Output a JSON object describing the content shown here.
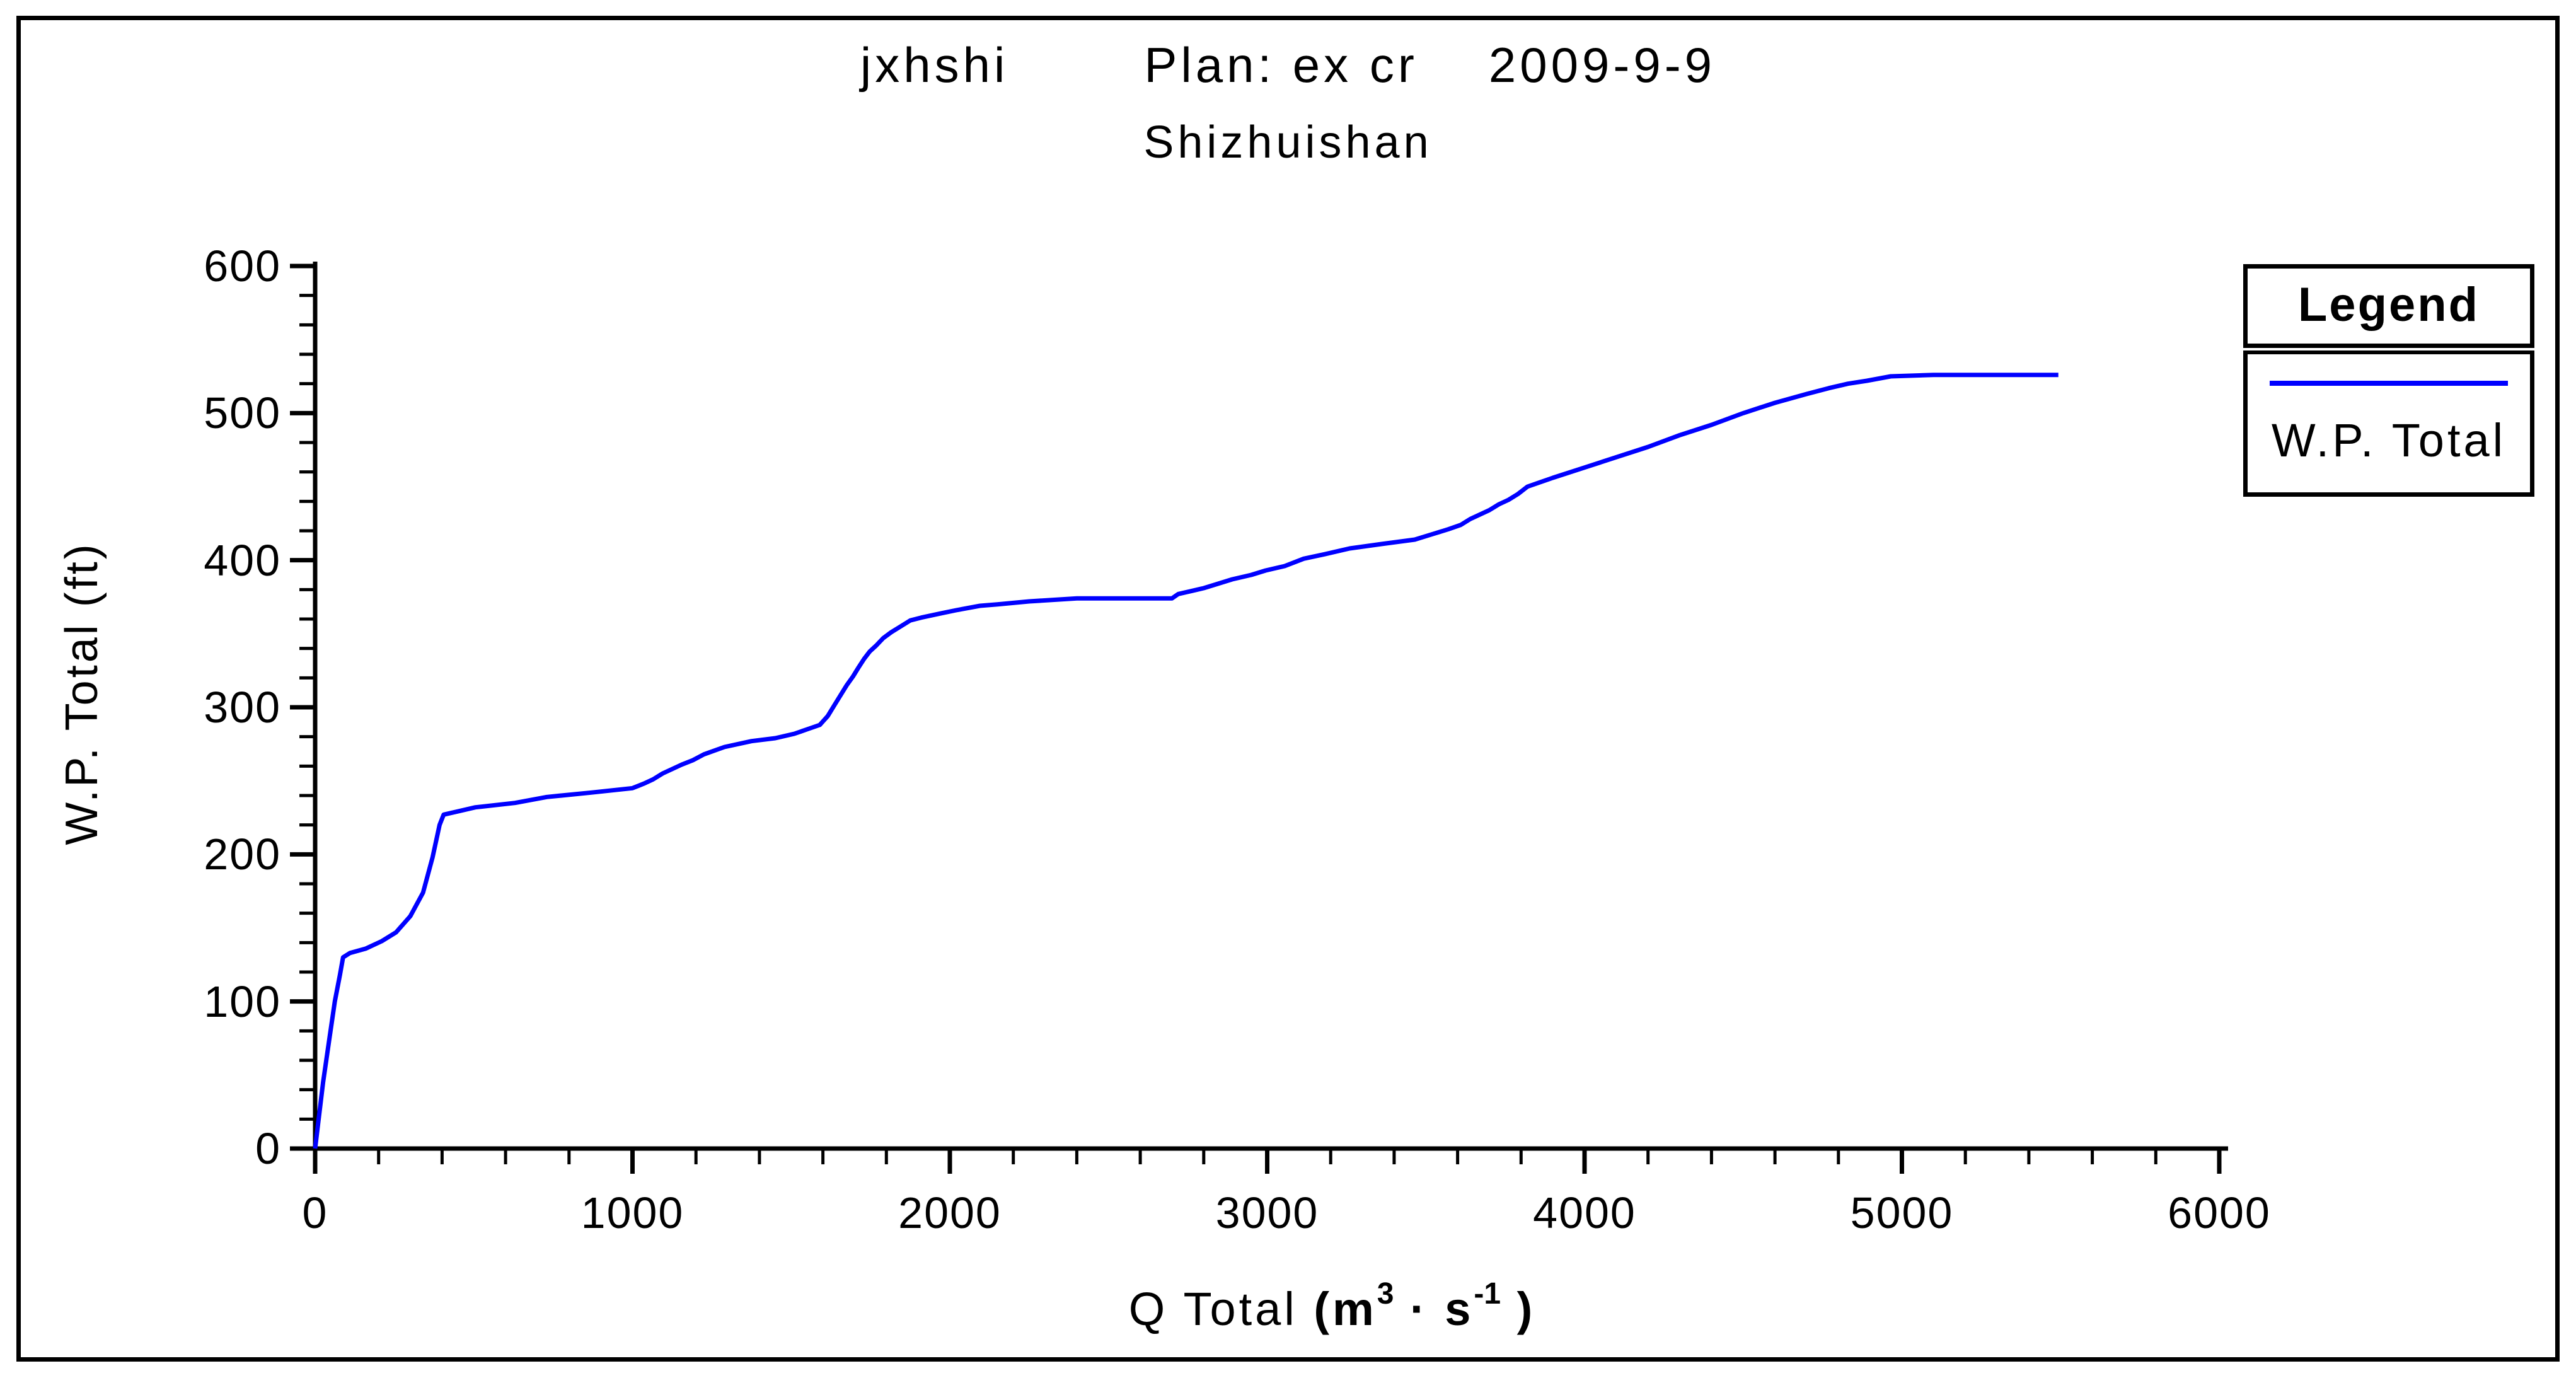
{
  "title": {
    "part1": "jxhshi",
    "part2": "Plan: ex cr",
    "part3": "2009-9-9"
  },
  "subtitle": "Shizhuishan",
  "legend": {
    "header": "Legend",
    "entry": "W.P. Total"
  },
  "y_axis": {
    "label": "W.P. Total (ft)",
    "ticks": [
      0,
      100,
      200,
      300,
      400,
      500,
      600
    ],
    "minor_step": 20,
    "range": [
      0,
      600
    ]
  },
  "x_axis": {
    "label_prefix": "Q Total ",
    "unit": {
      "open": "(m",
      "sup1": "3",
      "dot": " · s",
      "sup2": "-1",
      "close": " )"
    },
    "ticks": [
      0,
      1000,
      2000,
      3000,
      4000,
      5000,
      6000
    ],
    "minor_step": 200,
    "range": [
      0,
      6000
    ]
  },
  "colors": {
    "line": "#0000ff",
    "axis": "#000000",
    "text": "#000000",
    "background": "#ffffff"
  },
  "chart_data": {
    "type": "line",
    "title": "jxhshi    Plan: ex cr    2009-9-9",
    "subtitle": "Shizhuishan",
    "xlabel": "Q Total (m3 · s-1)",
    "ylabel": "W.P. Total (ft)",
    "xlim": [
      0,
      6000
    ],
    "ylim": [
      0,
      600
    ],
    "grid": false,
    "legend_position": "right",
    "series": [
      {
        "name": "W.P. Total",
        "color": "#0000ff",
        "points": [
          [
            0,
            0
          ],
          [
            10,
            18
          ],
          [
            25,
            45
          ],
          [
            45,
            75
          ],
          [
            62,
            100
          ],
          [
            78,
            118
          ],
          [
            88,
            130
          ],
          [
            110,
            133
          ],
          [
            160,
            136
          ],
          [
            210,
            141
          ],
          [
            255,
            147
          ],
          [
            300,
            158
          ],
          [
            340,
            174
          ],
          [
            370,
            198
          ],
          [
            392,
            220
          ],
          [
            405,
            227
          ],
          [
            445,
            229
          ],
          [
            505,
            232
          ],
          [
            630,
            235
          ],
          [
            730,
            239
          ],
          [
            870,
            242
          ],
          [
            1000,
            245
          ],
          [
            1035,
            248
          ],
          [
            1065,
            251
          ],
          [
            1095,
            255
          ],
          [
            1125,
            258
          ],
          [
            1155,
            261
          ],
          [
            1190,
            264
          ],
          [
            1225,
            268
          ],
          [
            1290,
            273
          ],
          [
            1375,
            277
          ],
          [
            1450,
            279
          ],
          [
            1510,
            282
          ],
          [
            1550,
            285
          ],
          [
            1590,
            288
          ],
          [
            1615,
            294
          ],
          [
            1635,
            301
          ],
          [
            1655,
            308
          ],
          [
            1675,
            315
          ],
          [
            1695,
            321
          ],
          [
            1712,
            327
          ],
          [
            1730,
            333
          ],
          [
            1748,
            338
          ],
          [
            1768,
            342
          ],
          [
            1790,
            347
          ],
          [
            1815,
            351
          ],
          [
            1845,
            355
          ],
          [
            1875,
            359
          ],
          [
            1910,
            361
          ],
          [
            1975,
            364
          ],
          [
            2020,
            366
          ],
          [
            2095,
            369
          ],
          [
            2150,
            370
          ],
          [
            2250,
            372
          ],
          [
            2400,
            374
          ],
          [
            2700,
            374
          ],
          [
            2720,
            377
          ],
          [
            2760,
            379
          ],
          [
            2800,
            381
          ],
          [
            2845,
            384
          ],
          [
            2890,
            387
          ],
          [
            2950,
            390
          ],
          [
            2995,
            393
          ],
          [
            3055,
            396
          ],
          [
            3115,
            401
          ],
          [
            3180,
            404
          ],
          [
            3260,
            408
          ],
          [
            3360,
            411
          ],
          [
            3465,
            414
          ],
          [
            3525,
            418
          ],
          [
            3570,
            421
          ],
          [
            3610,
            424
          ],
          [
            3640,
            428
          ],
          [
            3670,
            431
          ],
          [
            3700,
            434
          ],
          [
            3730,
            438
          ],
          [
            3760,
            441
          ],
          [
            3790,
            445
          ],
          [
            3820,
            450
          ],
          [
            3900,
            456
          ],
          [
            4000,
            463
          ],
          [
            4100,
            470
          ],
          [
            4200,
            477
          ],
          [
            4300,
            485
          ],
          [
            4400,
            492
          ],
          [
            4500,
            500
          ],
          [
            4600,
            507
          ],
          [
            4700,
            513
          ],
          [
            4770,
            517
          ],
          [
            4830,
            520
          ],
          [
            4890,
            522
          ],
          [
            4965,
            525
          ],
          [
            5100,
            526
          ],
          [
            5300,
            526
          ],
          [
            5493,
            526
          ]
        ]
      }
    ]
  }
}
